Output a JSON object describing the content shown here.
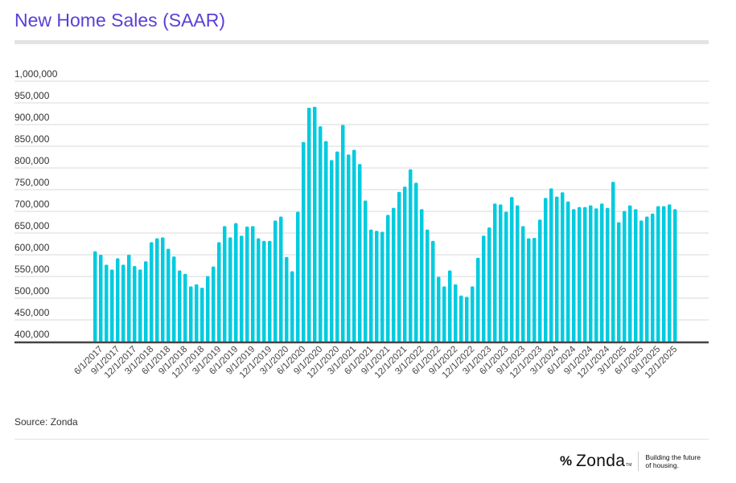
{
  "title": "New Home Sales (SAAR)",
  "source": "Source: Zonda",
  "logo": {
    "mark": "%",
    "word": "Zonda",
    "tm": "TM",
    "tagline_1": "Building the future",
    "tagline_2": "of housing."
  },
  "colors": {
    "bar": "#00cbdf",
    "title": "#5b3fd6",
    "grid": "#d9d9d9",
    "axis": "#444444"
  },
  "chart_data": {
    "type": "bar",
    "title": "New Home Sales (SAAR)",
    "xlabel": "",
    "ylabel": "",
    "ylim": [
      400000,
      1000000
    ],
    "yticks": [
      1000000,
      950000,
      900000,
      850000,
      800000,
      750000,
      700000,
      650000,
      600000,
      550000,
      500000,
      450000,
      400000
    ],
    "ytick_labels": [
      "1,000,000",
      "950,000",
      "900,000",
      "850,000",
      "800,000",
      "750,000",
      "700,000",
      "650,000",
      "600,000",
      "550,000",
      "500,000",
      "450,000",
      "400,000"
    ],
    "grid": true,
    "start": "5/1/2017",
    "frequency": "monthly",
    "xtick_labels": [
      "6/1/2017",
      "9/1/2017",
      "12/1/2017",
      "3/1/2018",
      "6/1/2018",
      "9/1/2018",
      "12/1/2018",
      "3/1/2019",
      "6/1/2019",
      "9/1/2019",
      "12/1/2019",
      "3/1/2020",
      "6/1/2020",
      "9/1/2020",
      "12/1/2020",
      "3/1/2021",
      "6/1/2021",
      "9/1/2021",
      "12/1/2021",
      "3/1/2022",
      "6/1/2022",
      "9/1/2022",
      "12/1/2022",
      "3/1/2023",
      "6/1/2023",
      "9/1/2023",
      "12/1/2023",
      "3/1/2024",
      "6/1/2024",
      "9/1/2024",
      "12/1/2024",
      "3/1/2025",
      "6/1/2025",
      "9/1/2025",
      "12/1/2025"
    ],
    "values": [
      608000,
      600000,
      577000,
      566000,
      592000,
      577000,
      600000,
      574000,
      566000,
      585000,
      629000,
      638000,
      640000,
      614000,
      596000,
      564000,
      556000,
      527000,
      532000,
      524000,
      551000,
      573000,
      629000,
      666000,
      640000,
      673000,
      644000,
      665000,
      666000,
      638000,
      632000,
      632000,
      679000,
      688000,
      595000,
      562000,
      699000,
      860000,
      939000,
      941000,
      896000,
      862000,
      818000,
      838000,
      899000,
      831000,
      842000,
      809000,
      725000,
      658000,
      655000,
      653000,
      692000,
      708000,
      745000,
      757000,
      797000,
      766000,
      705000,
      658000,
      632000,
      549000,
      527000,
      564000,
      532000,
      506000,
      503000,
      527000,
      593000,
      644000,
      663000,
      718000,
      716000,
      699000,
      733000,
      714000,
      666000,
      638000,
      639000,
      681000,
      731000,
      753000,
      734000,
      744000,
      723000,
      705000,
      710000,
      710000,
      714000,
      707000,
      718000,
      708000,
      768000,
      675000,
      701000,
      714000,
      705000,
      679000,
      688000,
      695000,
      712000,
      712000,
      716000,
      705000
    ]
  }
}
